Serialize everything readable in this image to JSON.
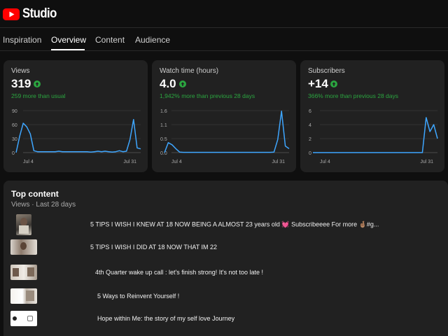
{
  "app": {
    "title": "Studio"
  },
  "tabs": [
    {
      "label": "Inspiration",
      "active": false
    },
    {
      "label": "Overview",
      "active": true
    },
    {
      "label": "Content",
      "active": false
    },
    {
      "label": "Audience",
      "active": false
    }
  ],
  "colors": {
    "accent": "#3ea6ff",
    "positive": "#2ba640",
    "brand": "#ff0000",
    "card": "#212121",
    "background": "#0f0f0f"
  },
  "cards": [
    {
      "title": "Views",
      "value": "319",
      "comparison": "259 more than usual"
    },
    {
      "title": "Watch time (hours)",
      "value": "4.0",
      "comparison": "1,942% more than previous 28 days"
    },
    {
      "title": "Subscribers",
      "value": "+14",
      "comparison": "366% more than previous 28 days"
    }
  ],
  "chart_data": [
    {
      "type": "line",
      "title": "",
      "x_tick_labels": [
        "Jul 4",
        "Jul 31"
      ],
      "y_tick_labels": [
        "90",
        "60",
        "30",
        "0"
      ],
      "ylim": [
        0,
        90
      ],
      "grid": true,
      "series": [
        {
          "values": [
            0,
            35,
            63,
            55,
            40,
            4,
            2,
            2,
            2,
            2,
            2,
            2,
            3,
            2,
            2,
            2,
            2,
            2,
            2,
            2,
            2,
            1,
            2,
            3,
            2,
            3,
            2,
            1,
            2,
            4,
            2,
            3,
            28,
            71,
            10,
            8
          ]
        }
      ]
    },
    {
      "type": "line",
      "title": "",
      "x_tick_labels": [
        "Jul 4",
        "Jul 31"
      ],
      "y_tick_labels": [
        "1.6",
        "1.1",
        "0.5",
        "0.0"
      ],
      "ylim": [
        0,
        1.6
      ],
      "grid": true,
      "series": [
        {
          "values": [
            0,
            0.38,
            0.3,
            0.15,
            0.02,
            0.01,
            0.01,
            0.01,
            0.01,
            0.01,
            0.01,
            0.01,
            0.01,
            0.01,
            0.01,
            0.01,
            0.01,
            0.01,
            0.01,
            0.01,
            0.01,
            0.01,
            0.01,
            0.01,
            0.01,
            0.01,
            0.01,
            0.01,
            0.01,
            0.02,
            0.5,
            1.58,
            0.25,
            0.15
          ]
        }
      ]
    },
    {
      "type": "line",
      "title": "",
      "x_tick_labels": [
        "Jul 4",
        "Jul 31"
      ],
      "y_tick_labels": [
        "6",
        "4",
        "2",
        "0"
      ],
      "ylim": [
        0,
        6
      ],
      "grid": true,
      "series": [
        {
          "values": [
            0,
            0,
            0,
            0,
            0,
            0,
            0,
            0,
            0,
            0,
            0,
            0,
            0,
            0,
            0,
            0,
            0,
            0,
            0,
            0,
            0,
            0,
            0,
            0,
            0,
            0,
            0,
            0,
            0,
            0,
            5,
            3,
            4,
            2
          ]
        }
      ]
    }
  ],
  "top_content": {
    "title": "Top content",
    "subtitle": "Views · Last 28 days",
    "items": [
      {
        "title": "5 TIPS I WISH I KNEW AT 18 NOW BEING A ALMOST 23 years old 💓 Subscribeeee For more 🤞🏽#g..."
      },
      {
        "title": "5 TIPS I WISH I DID AT 18 NOW THAT IM 22"
      },
      {
        "title": "4th Quarter wake up call :  let's finish strong! It's not too late !"
      },
      {
        "title": "5 Ways to Reinvent Yourself !"
      },
      {
        "title": "Hope within Me: the story of my self love Journey"
      }
    ]
  }
}
